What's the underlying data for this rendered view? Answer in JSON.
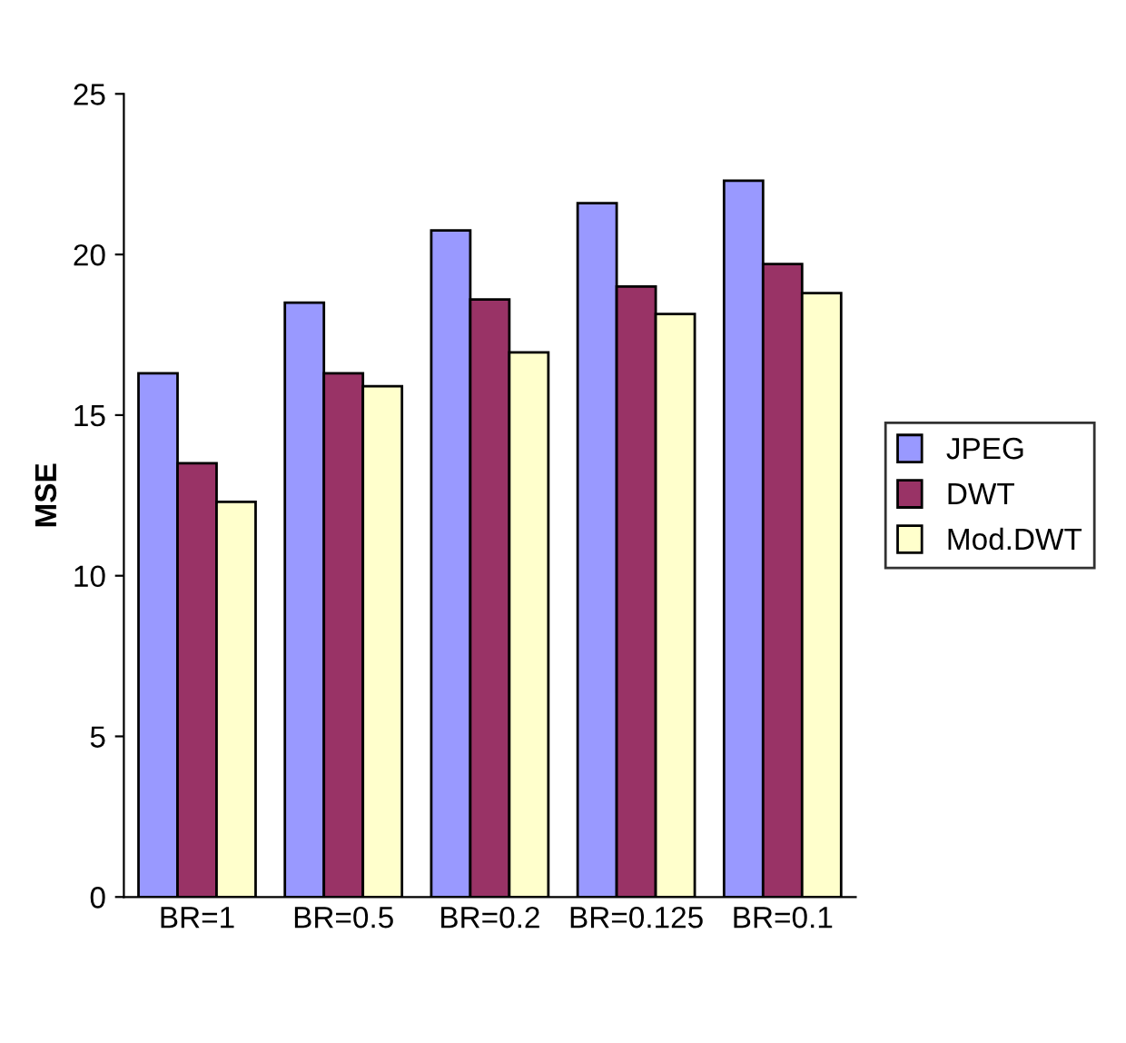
{
  "chart_data": {
    "type": "bar",
    "ylabel": "MSE",
    "categories": [
      "BR=1",
      "BR=0.5",
      "BR=0.2",
      "BR=0.125",
      "BR=0.1"
    ],
    "series": [
      {
        "name": "JPEG",
        "color": "#9999ff",
        "values": [
          16.3,
          18.5,
          20.75,
          21.6,
          22.3
        ]
      },
      {
        "name": "DWT",
        "color": "#993366",
        "values": [
          13.5,
          16.3,
          18.6,
          19.0,
          19.7
        ]
      },
      {
        "name": "Mod.DWT",
        "color": "#ffffcc",
        "values": [
          12.3,
          15.9,
          16.95,
          18.15,
          18.8
        ]
      }
    ],
    "ylim": [
      0,
      25
    ],
    "yticks": [
      0,
      5,
      10,
      15,
      20,
      25
    ],
    "grid": false,
    "legend": "right"
  }
}
